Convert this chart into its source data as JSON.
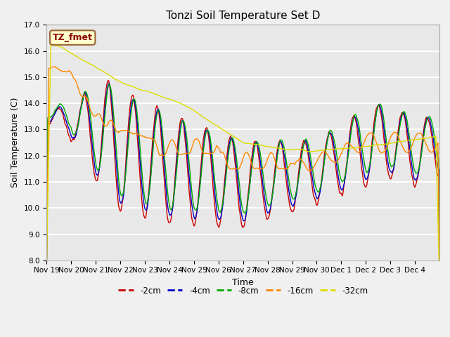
{
  "title": "Tonzi Soil Temperature Set D",
  "xlabel": "Time",
  "ylabel": "Soil Temperature (C)",
  "ylim": [
    8.0,
    17.0
  ],
  "yticks": [
    8.0,
    9.0,
    10.0,
    11.0,
    12.0,
    13.0,
    14.0,
    15.0,
    16.0,
    17.0
  ],
  "legend_label": "TZ_fmet",
  "series_labels": [
    "-2cm",
    "-4cm",
    "-8cm",
    "-16cm",
    "-32cm"
  ],
  "series_colors": [
    "#cc0000",
    "#0000cc",
    "#00aa00",
    "#ff8800",
    "#dddd00"
  ],
  "background_color": "#f0f0f0",
  "axes_bg_color": "#e8e8e8",
  "xtick_labels": [
    "Nov 19",
    "Nov 20",
    "Nov 21",
    "Nov 22",
    "Nov 23",
    "Nov 24",
    "Nov 25",
    "Nov 26",
    "Nov 27",
    "Nov 28",
    "Nov 29",
    "Nov 30",
    "Dec 1",
    "Dec 2",
    "Dec 3",
    "Dec 4"
  ],
  "title_fontsize": 11,
  "tick_fontsize": 7.5,
  "label_fontsize": 9,
  "legend_box_color": "#ffffcc",
  "legend_text_color": "#8b0000"
}
